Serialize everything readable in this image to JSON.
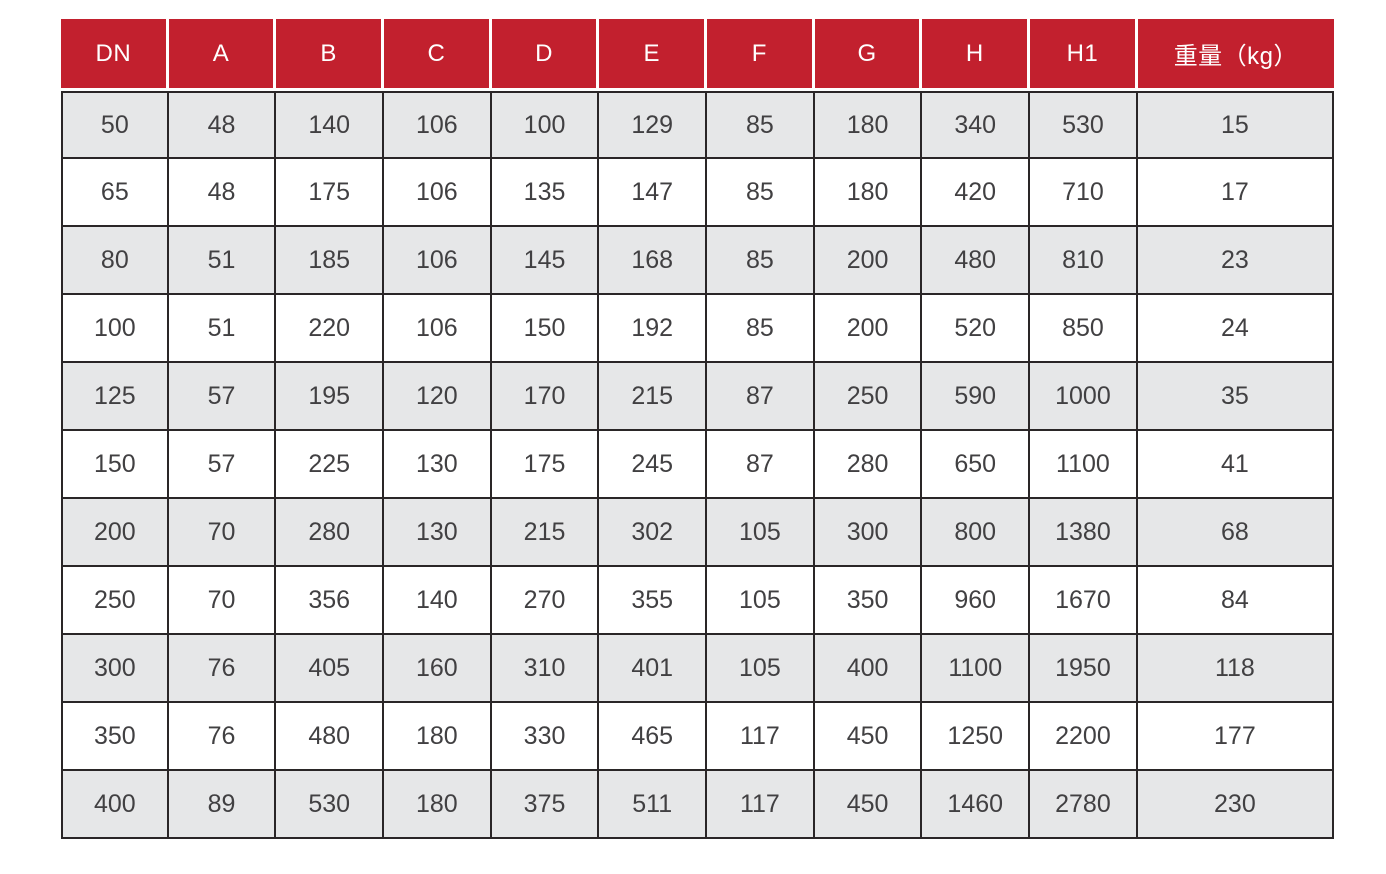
{
  "chart_data": {
    "type": "table",
    "title": "重量（kg）",
    "columns": [
      "DN",
      "A",
      "B",
      "C",
      "D",
      "E",
      "F",
      "G",
      "H",
      "H1",
      "重量（kg）"
    ],
    "rows": [
      [
        "50",
        "48",
        "140",
        "106",
        "100",
        "129",
        "85",
        "180",
        "340",
        "530",
        "15"
      ],
      [
        "65",
        "48",
        "175",
        "106",
        "135",
        "147",
        "85",
        "180",
        "420",
        "710",
        "17"
      ],
      [
        "80",
        "51",
        "185",
        "106",
        "145",
        "168",
        "85",
        "200",
        "480",
        "810",
        "23"
      ],
      [
        "100",
        "51",
        "220",
        "106",
        "150",
        "192",
        "85",
        "200",
        "520",
        "850",
        "24"
      ],
      [
        "125",
        "57",
        "195",
        "120",
        "170",
        "215",
        "87",
        "250",
        "590",
        "1000",
        "35"
      ],
      [
        "150",
        "57",
        "225",
        "130",
        "175",
        "245",
        "87",
        "280",
        "650",
        "1100",
        "41"
      ],
      [
        "200",
        "70",
        "280",
        "130",
        "215",
        "302",
        "105",
        "300",
        "800",
        "1380",
        "68"
      ],
      [
        "250",
        "70",
        "356",
        "140",
        "270",
        "355",
        "105",
        "350",
        "960",
        "1670",
        "84"
      ],
      [
        "300",
        "76",
        "405",
        "160",
        "310",
        "401",
        "105",
        "400",
        "1100",
        "1950",
        "118"
      ],
      [
        "350",
        "76",
        "480",
        "180",
        "330",
        "465",
        "117",
        "450",
        "1250",
        "2200",
        "177"
      ],
      [
        "400",
        "89",
        "530",
        "180",
        "375",
        "511",
        "117",
        "450",
        "1460",
        "2780",
        "230"
      ]
    ],
    "layout": {
      "striped": true,
      "stripe_pattern": "odd-rows-gray",
      "header_position": "top"
    }
  },
  "colors": {
    "header_bg": "#c2202e",
    "header_text": "#ffffff",
    "row_bg": "#ffffff",
    "row_alt_bg": "#e6e7e8",
    "border": "#2a2627",
    "cell_text": "#414042"
  }
}
